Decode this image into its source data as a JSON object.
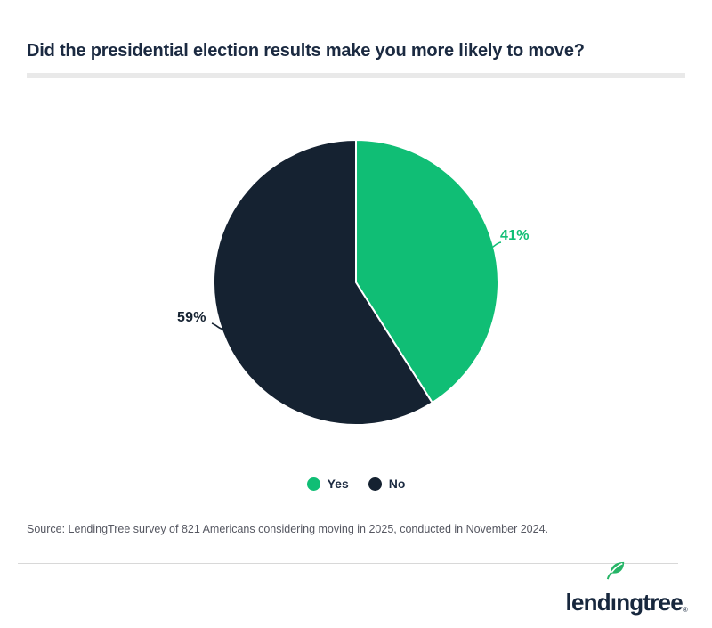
{
  "header": {
    "title": "Did the presidential election results make you more likely to move?"
  },
  "chart_data": {
    "type": "pie",
    "title": "Did the presidential election results make you more likely to move?",
    "slices": [
      {
        "label": "Yes",
        "value": 41,
        "percent_label": "41%",
        "color": "#10be75"
      },
      {
        "label": "No",
        "value": 59,
        "percent_label": "59%",
        "color": "#152231"
      }
    ],
    "start_angle": "top",
    "direction": "clockwise",
    "legend_position": "bottom-center",
    "data_labels": "outside-with-connector"
  },
  "footer": {
    "source": "Source: LendingTree survey of 821 Americans considering moving in 2025, conducted in November 2024.",
    "logo": {
      "brand": "lendingtree",
      "registered_mark": "®"
    }
  },
  "colors": {
    "accent_green": "#10be75",
    "dark_navy": "#152231",
    "title_text": "#1b2a41",
    "source_text": "#555761",
    "title_underline": "#e9e9e9",
    "footer_divider": "#d8d8d8",
    "leaf_green": "#26b567",
    "background": "#ffffff"
  }
}
